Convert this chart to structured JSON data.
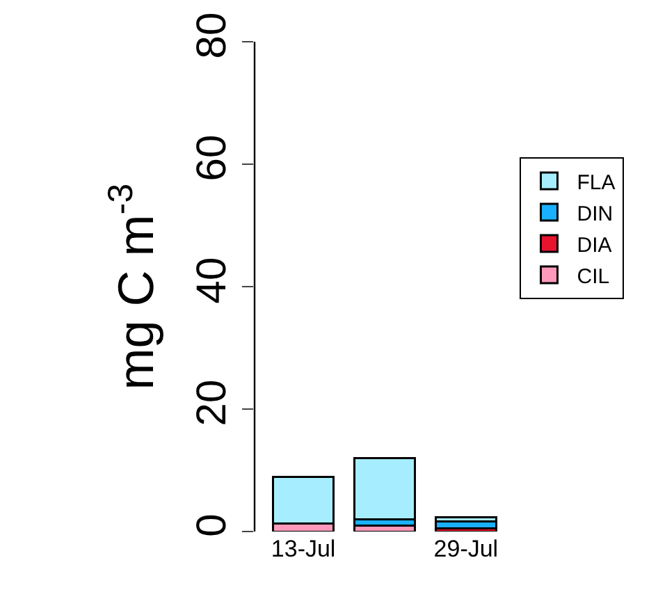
{
  "chart_data": {
    "type": "bar",
    "stacked": true,
    "ylabel": "mg C m$^{-3}$",
    "categories": [
      "13-Jul",
      null,
      "29-Jul"
    ],
    "series": [
      {
        "name": "CIL",
        "color": "#ff99bb",
        "values": [
          1.3,
          1.0,
          null
        ]
      },
      {
        "name": "DIA",
        "color": "#e8142e",
        "values": [
          null,
          null,
          0.5
        ]
      },
      {
        "name": "DIN",
        "color": "#1ab0ff",
        "values": [
          null,
          1.0,
          1.2
        ]
      },
      {
        "name": "FLA",
        "color": "#a6eeff",
        "values": [
          7.6,
          10.0,
          0.6
        ]
      }
    ],
    "ylim": [
      0,
      80
    ],
    "yticks": [
      0,
      20,
      40,
      60,
      80
    ],
    "grid": false,
    "legend": "right"
  }
}
